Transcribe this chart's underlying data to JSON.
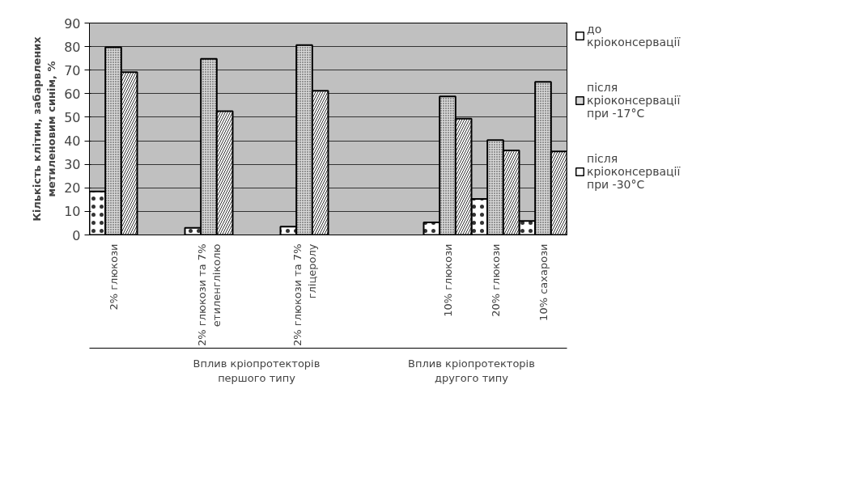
{
  "chart_data": {
    "type": "bar",
    "ylabel": "Кількість клітин, забарвлених метиленовим синім, %",
    "categories": [
      "2% глюкози",
      null,
      "2% глюкози та 7% етиленгліколю",
      null,
      "2% глюкози та 7% гліцеролу",
      null,
      null,
      "10% глюкози",
      "20% глюкози",
      "10% сахарози"
    ],
    "series": [
      {
        "name": "до кріоконсервації",
        "color": "#ffffff",
        "values": [
          18.5,
          null,
          3,
          null,
          3.5,
          null,
          null,
          5.3,
          15.3,
          5.9
        ]
      },
      {
        "name": "після кріоконсервації при -17°C",
        "color": "#d9d9d9",
        "values": [
          79.7,
          null,
          74.8,
          null,
          80.6,
          null,
          null,
          58.8,
          40.3,
          65
        ]
      },
      {
        "name": "після кріоконсервації при -30°C",
        "color": "#ffffff",
        "values": [
          69.1,
          null,
          52.6,
          null,
          61.2,
          null,
          null,
          49.4,
          35.9,
          35.5
        ]
      }
    ],
    "ylim": [
      0,
      90
    ],
    "yticks": [
      0,
      10,
      20,
      30,
      40,
      50,
      60,
      70,
      80,
      90
    ],
    "grid": "y",
    "legend": "right",
    "annotations": [
      "Вплив кріопротекторів першого типу",
      "Вплив кріопротекторів другого типу"
    ]
  }
}
